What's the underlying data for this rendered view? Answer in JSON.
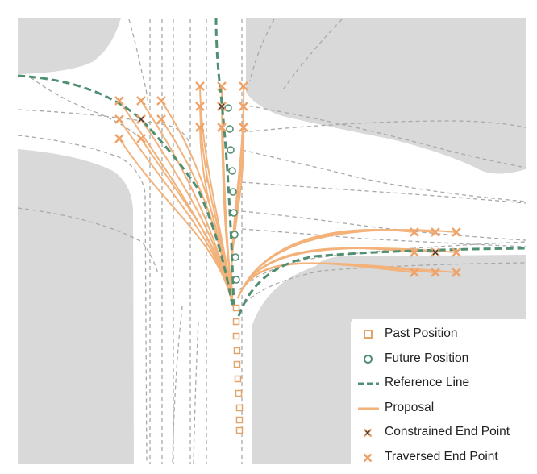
{
  "colors": {
    "background": "#ffffff",
    "building": "#d9d9d9",
    "lane_centerline": "#a9a9a9",
    "proposal": "#f2b27a",
    "reference_line": "#4f8f72",
    "past_position": "#e3a46c",
    "future_position": "#4f8f72",
    "end_point": "#eea36b",
    "constrained_end_point": "#3b3b3b"
  },
  "legend": {
    "items": [
      {
        "label": "Past Position",
        "marker": "square"
      },
      {
        "label": "Future Position",
        "marker": "circle"
      },
      {
        "label": "Reference Line",
        "marker": "dashed-line"
      },
      {
        "label": "Proposal",
        "marker": "line"
      },
      {
        "label": "Constrained End Point",
        "marker": "cross-dark"
      },
      {
        "label": "Traversed End Point",
        "marker": "cross"
      }
    ]
  }
}
